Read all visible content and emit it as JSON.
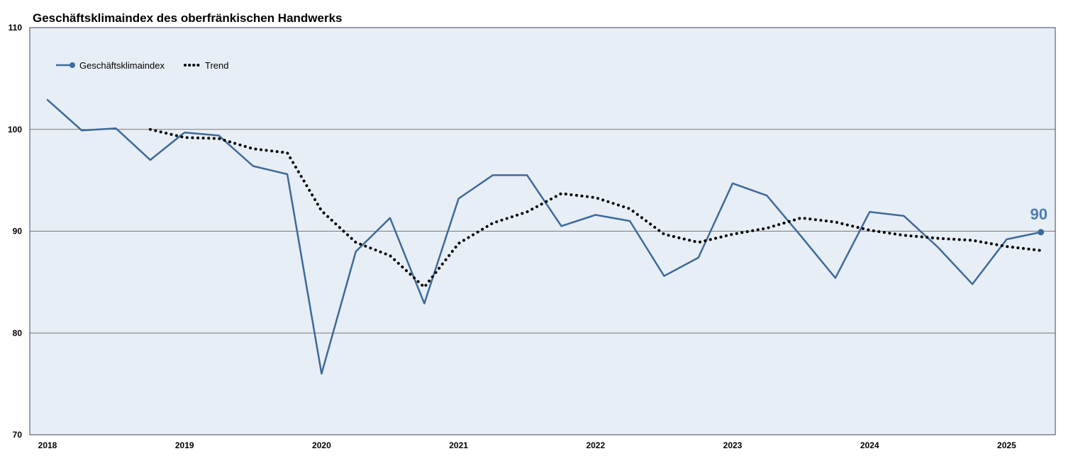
{
  "chart_data": {
    "type": "line",
    "title": "Geschäftsklimaindex des oberfränkischen Handwerks",
    "xlabel": "",
    "ylabel": "",
    "x_ticks": [
      "2018",
      "2019",
      "2020",
      "2021",
      "2022",
      "2023",
      "2024",
      "2025"
    ],
    "y_ticks": [
      70,
      80,
      90,
      100,
      110
    ],
    "ylim": [
      70,
      110
    ],
    "x_range_quarters": [
      0,
      29
    ],
    "grid": "horizontal",
    "legend_placement": "top-left",
    "background_color": "#e8eef5",
    "series": [
      {
        "name": "Geschäftsklimaindex",
        "style": "solid-line-with-end-marker",
        "color": "#3d6a9a",
        "x": [
          "2018 Q1",
          "2018 Q2",
          "2018 Q3",
          "2018 Q4",
          "2019 Q1",
          "2019 Q2",
          "2019 Q3",
          "2019 Q4",
          "2020 Q1",
          "2020 Q2",
          "2020 Q3",
          "2020 Q4",
          "2021 Q1",
          "2021 Q2",
          "2021 Q3",
          "2021 Q4",
          "2022 Q1",
          "2022 Q2",
          "2022 Q3",
          "2022 Q4",
          "2023 Q1",
          "2023 Q2",
          "2023 Q3",
          "2023 Q4",
          "2024 Q1",
          "2024 Q2",
          "2024 Q3",
          "2024 Q4",
          "2025 Q1",
          "2025 Q2"
        ],
        "values": [
          102.9,
          99.9,
          100.1,
          97.0,
          99.7,
          99.4,
          96.4,
          95.6,
          76.0,
          88.0,
          91.3,
          82.9,
          93.2,
          95.5,
          95.5,
          90.5,
          91.6,
          91.0,
          85.6,
          87.4,
          94.7,
          93.5,
          89.5,
          85.4,
          91.9,
          91.5,
          88.4,
          84.8,
          89.2,
          89.9
        ]
      },
      {
        "name": "Trend",
        "style": "dotted-line",
        "color": "#000000",
        "x": [
          "2018 Q4",
          "2019 Q1",
          "2019 Q2",
          "2019 Q3",
          "2019 Q4",
          "2020 Q1",
          "2020 Q2",
          "2020 Q3",
          "2020 Q4",
          "2021 Q1",
          "2021 Q2",
          "2021 Q3",
          "2021 Q4",
          "2022 Q1",
          "2022 Q2",
          "2022 Q3",
          "2022 Q4",
          "2023 Q1",
          "2023 Q2",
          "2023 Q3",
          "2023 Q4",
          "2024 Q1",
          "2024 Q2",
          "2024 Q3",
          "2024 Q4",
          "2025 Q1",
          "2025 Q2"
        ],
        "values": [
          100.0,
          99.2,
          99.1,
          98.1,
          97.7,
          92.0,
          88.9,
          87.6,
          84.5,
          88.8,
          90.8,
          91.9,
          93.7,
          93.3,
          92.2,
          89.7,
          88.9,
          89.7,
          90.3,
          91.3,
          90.9,
          90.1,
          89.6,
          89.3,
          89.1,
          88.5,
          88.1
        ]
      }
    ],
    "annotations": [
      {
        "text": "90",
        "color": "#4a7cb5"
      }
    ]
  }
}
